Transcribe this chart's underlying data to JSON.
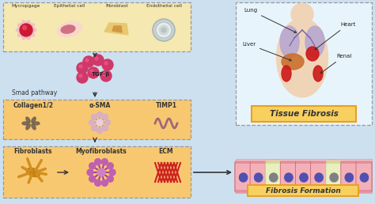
{
  "bg_color": "#cce0f0",
  "box_cell_color": "#f5e8b0",
  "box_signal_color": "#f8c870",
  "box_bottom_color": "#f8c870",
  "dashed_edge": "#999999",
  "orange_edge": "#e8a020",
  "arrow_color": "#333333",
  "tgf_blob_color": "#d03868",
  "tgf_label": "TGF-β",
  "smad_label": "Smad pathway",
  "cell_labels": [
    "Mycropgage",
    "Epithelial cell",
    "Fibroblast",
    "Endothelial cell"
  ],
  "signal_labels": [
    "Collagen1/2",
    "α-SMA",
    "TIMP1"
  ],
  "bottom_labels": [
    "Fibroblasts",
    "Myofibroblasts",
    "ECM"
  ],
  "tissue_label": "Tissue Fibrosis",
  "fibrosis_label": "Fibrosis Formation",
  "organ_labels": [
    "Lung",
    "Heart",
    "Liver",
    "Renal"
  ],
  "tissue_box_bg": "#e8f4fc",
  "collagen_color": "#806040",
  "sma_color": "#c090a8",
  "timp_color": "#a06878",
  "fib_color": "#c88010",
  "myo_color": "#a04090",
  "ecm_color": "#cc2020"
}
